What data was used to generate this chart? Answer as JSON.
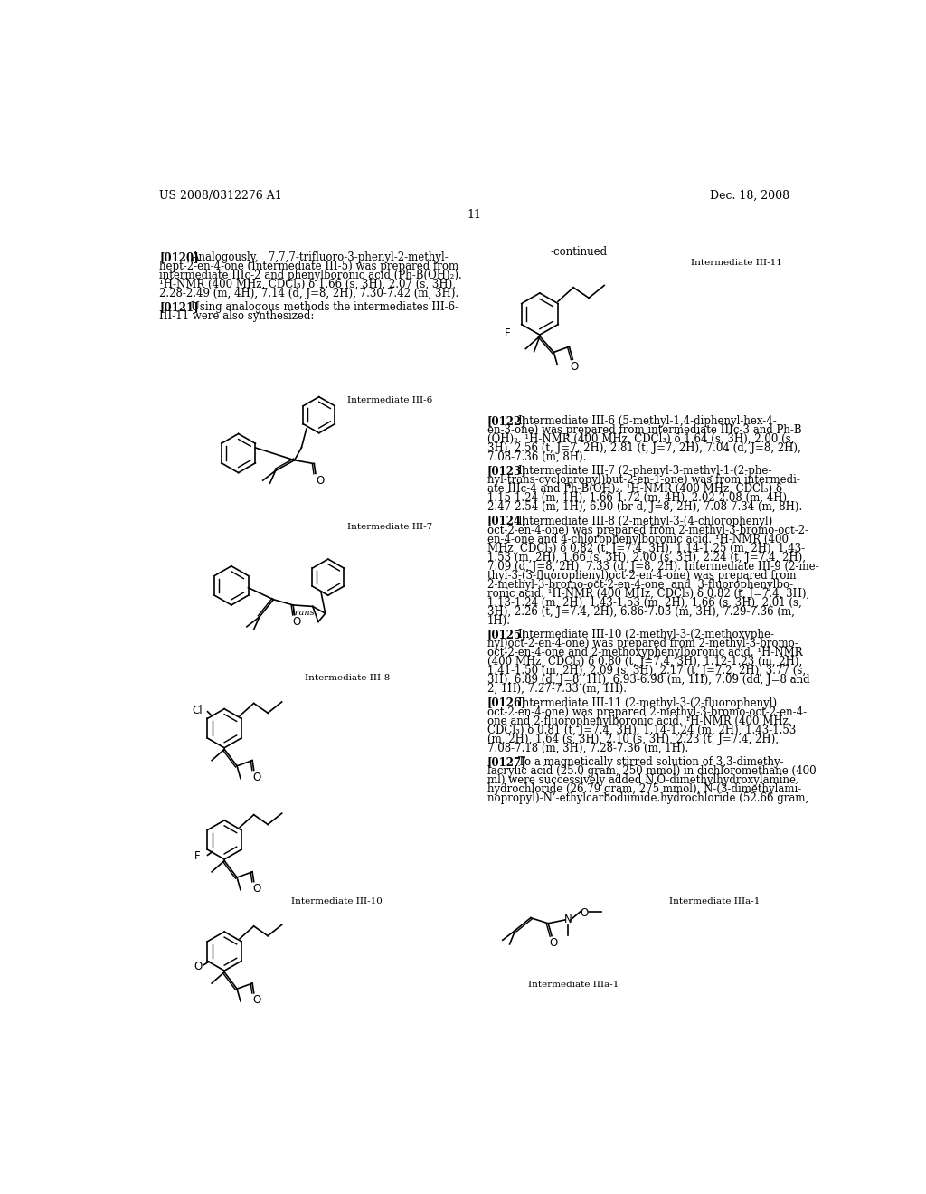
{
  "background_color": "#ffffff",
  "header_left": "US 2008/0312276 A1",
  "header_right": "Dec. 18, 2008",
  "page_number": "11"
}
